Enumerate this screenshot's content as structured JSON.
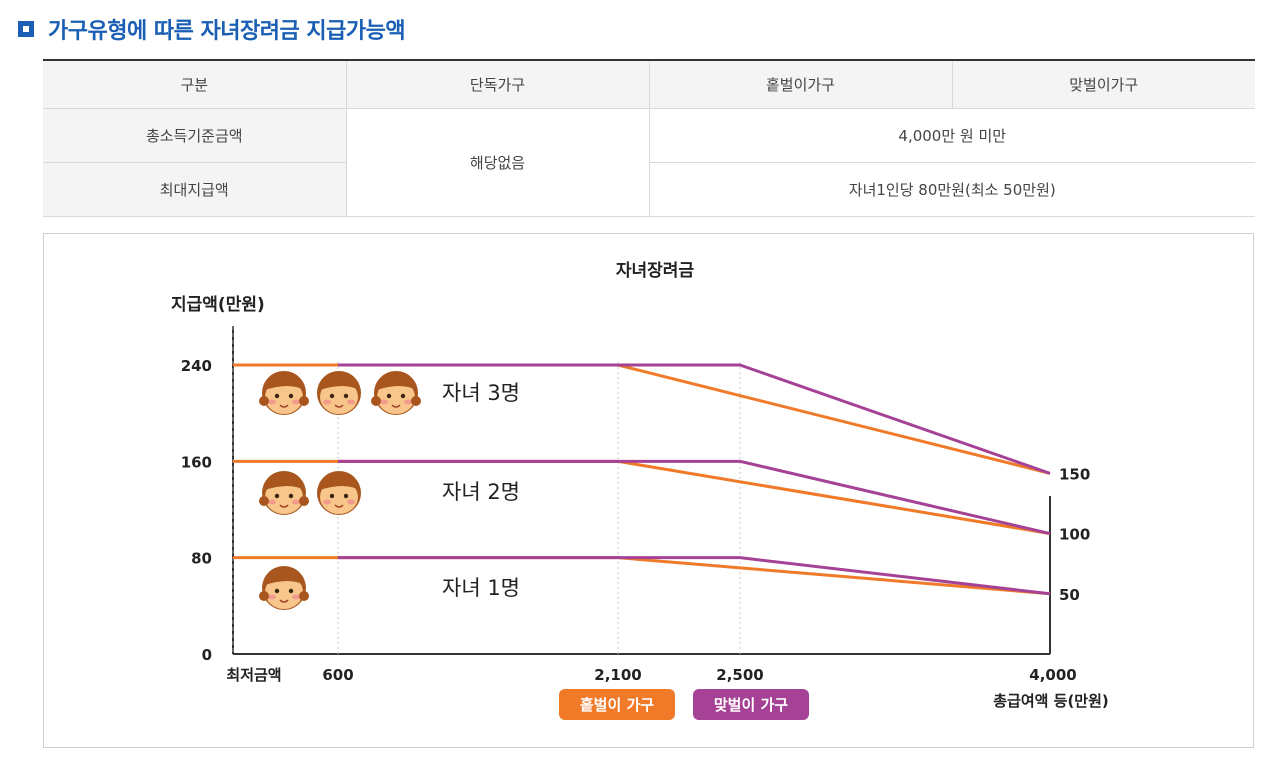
{
  "heading": "가구유형에 따른 자녀장려금 지급가능액",
  "table": {
    "headers": [
      "구분",
      "단독가구",
      "홑벌이가구",
      "맞벌이가구"
    ],
    "rows": [
      {
        "label": "총소득기준금액",
        "value": "4,000만 원 미만"
      },
      {
        "label": "최대지급액",
        "value": "자녀1인당 80만원(최소 50만원)"
      }
    ],
    "single_value": "해당없음"
  },
  "chart_data": {
    "type": "line",
    "title": "자녀장려금",
    "ylabel": "지급액(만원)",
    "xlabel": "총급여액 등(만원)",
    "x_ticks": [
      "최저금액",
      "600",
      "2,100",
      "2,500",
      "4,000"
    ],
    "y_ticks": [
      "0",
      "80",
      "160",
      "240"
    ],
    "right_ticks": [
      "150",
      "100",
      "50"
    ],
    "ylim": [
      0,
      240
    ],
    "series": [
      {
        "name": "홑벌이 가구",
        "color": "#f07a28",
        "lines": [
          {
            "group": "자녀 3명",
            "points": [
              [
                "최저금액",
                240
              ],
              [
                2100,
                240
              ],
              [
                4000,
                150
              ]
            ]
          },
          {
            "group": "자녀 2명",
            "points": [
              [
                "최저금액",
                160
              ],
              [
                2100,
                160
              ],
              [
                4000,
                100
              ]
            ]
          },
          {
            "group": "자녀 1명",
            "points": [
              [
                "최저금액",
                80
              ],
              [
                2100,
                80
              ],
              [
                4000,
                50
              ]
            ]
          }
        ]
      },
      {
        "name": "맞벌이 가구",
        "color": "#a64296",
        "lines": [
          {
            "group": "자녀 3명",
            "points": [
              [
                600,
                240
              ],
              [
                2500,
                240
              ],
              [
                4000,
                150
              ]
            ]
          },
          {
            "group": "자녀 2명",
            "points": [
              [
                600,
                160
              ],
              [
                2500,
                160
              ],
              [
                4000,
                100
              ]
            ]
          },
          {
            "group": "자녀 1명",
            "points": [
              [
                600,
                80
              ],
              [
                2500,
                80
              ],
              [
                4000,
                50
              ]
            ]
          }
        ]
      }
    ],
    "annotations": [
      {
        "text": "자녀 3명",
        "children": 3
      },
      {
        "text": "자녀 2명",
        "children": 2
      },
      {
        "text": "자녀 1명",
        "children": 1
      }
    ],
    "legend": [
      "홑벌이 가구",
      "맞벌이 가구"
    ]
  }
}
